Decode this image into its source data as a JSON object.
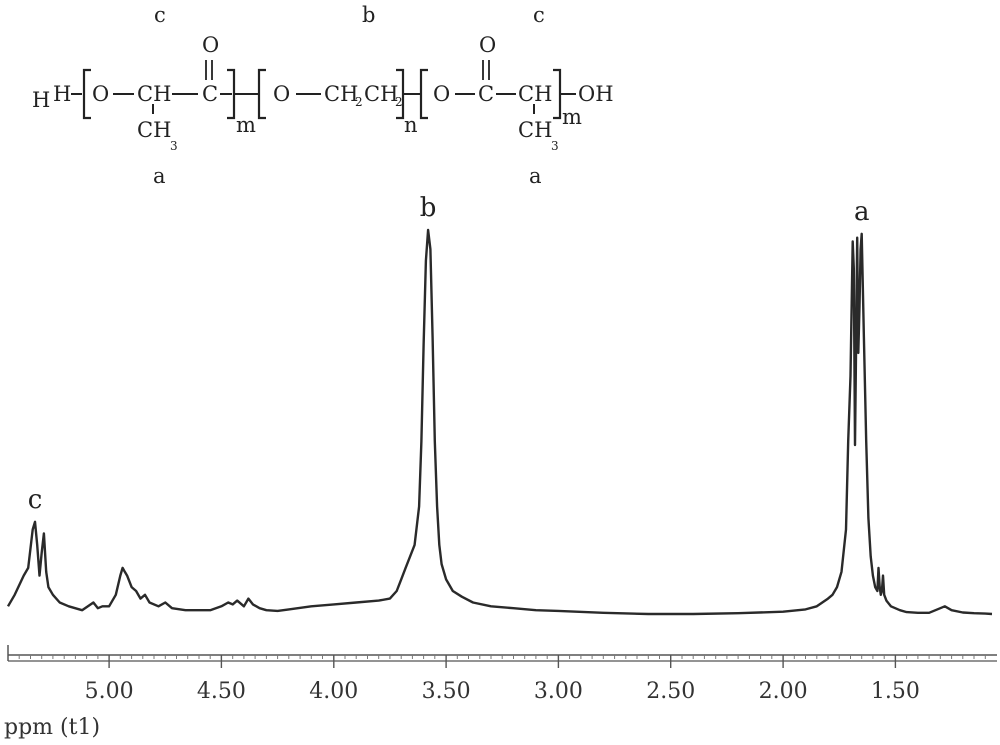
{
  "structure": {
    "labels_top": [
      "c",
      "b",
      "c"
    ],
    "labels_bottom": [
      "a",
      "a"
    ],
    "h_end": "H",
    "h": "H",
    "o1": "O",
    "ch1": "CH",
    "c1": "C",
    "o_carbonyl1": "O",
    "ch3_1": "CH",
    "ch3_1_sub": "3",
    "m1": "m",
    "o2": "O",
    "ch2_a": "CH",
    "ch2_a_sub": "2",
    "ch2_b": "CH",
    "ch2_b_sub": "2",
    "n": "n",
    "o3": "O",
    "c2": "C",
    "o_carbonyl2": "O",
    "ch2": "CH",
    "ch3_2": "CH",
    "ch3_2_sub": "3",
    "m2": "m",
    "oh": "OH"
  },
  "chart_data": {
    "type": "line",
    "xlabel": "ppm (t1)",
    "ylabel": "",
    "x_reversed": true,
    "xlim": [
      5.45,
      1.07
    ],
    "ylim": [
      0,
      1
    ],
    "x_ticks": [
      5.0,
      4.5,
      4.0,
      3.5,
      3.0,
      2.5,
      2.0,
      1.5
    ],
    "x_tick_labels": [
      "5.00",
      "4.50",
      "4.00",
      "3.50",
      "3.00",
      "2.50",
      "2.00",
      "1.50"
    ],
    "peak_labels": [
      {
        "label": "c",
        "x": 5.33
      },
      {
        "label": "b",
        "x": 3.58
      },
      {
        "label": "a",
        "x": 1.65
      }
    ],
    "series": [
      {
        "x": [
          5.45,
          5.42,
          5.38,
          5.36,
          5.34,
          5.33,
          5.32,
          5.31,
          5.3,
          5.29,
          5.28,
          5.27,
          5.25,
          5.22,
          5.18,
          5.12,
          5.07,
          5.05,
          5.03,
          5.0,
          4.97,
          4.95,
          4.94,
          4.93,
          4.92,
          4.9,
          4.88,
          4.86,
          4.84,
          4.82,
          4.78,
          4.75,
          4.72,
          4.66,
          4.6,
          4.55,
          4.5,
          4.47,
          4.45,
          4.43,
          4.4,
          4.38,
          4.36,
          4.33,
          4.3,
          4.25,
          4.2,
          4.1,
          4.0,
          3.9,
          3.8,
          3.75,
          3.72,
          3.7,
          3.68,
          3.66,
          3.64,
          3.62,
          3.61,
          3.6,
          3.59,
          3.58,
          3.57,
          3.56,
          3.55,
          3.54,
          3.53,
          3.52,
          3.5,
          3.47,
          3.43,
          3.38,
          3.3,
          3.2,
          3.1,
          3.0,
          2.8,
          2.6,
          2.4,
          2.2,
          2.0,
          1.9,
          1.85,
          1.8,
          1.78,
          1.76,
          1.74,
          1.72,
          1.71,
          1.7,
          1.69,
          1.685,
          1.68,
          1.675,
          1.67,
          1.665,
          1.66,
          1.655,
          1.65,
          1.64,
          1.63,
          1.62,
          1.61,
          1.6,
          1.59,
          1.58,
          1.575,
          1.57,
          1.565,
          1.56,
          1.555,
          1.55,
          1.54,
          1.52,
          1.48,
          1.45,
          1.4,
          1.35,
          1.3,
          1.28,
          1.25,
          1.2,
          1.15,
          1.1,
          1.07
        ],
        "y": [
          0.02,
          0.05,
          0.1,
          0.12,
          0.22,
          0.24,
          0.18,
          0.1,
          0.16,
          0.21,
          0.11,
          0.07,
          0.05,
          0.03,
          0.02,
          0.01,
          0.03,
          0.015,
          0.02,
          0.02,
          0.05,
          0.1,
          0.12,
          0.11,
          0.1,
          0.07,
          0.06,
          0.04,
          0.05,
          0.03,
          0.02,
          0.03,
          0.015,
          0.01,
          0.01,
          0.01,
          0.02,
          0.03,
          0.025,
          0.035,
          0.02,
          0.04,
          0.025,
          0.015,
          0.01,
          0.008,
          0.012,
          0.02,
          0.025,
          0.03,
          0.035,
          0.04,
          0.06,
          0.09,
          0.12,
          0.15,
          0.18,
          0.28,
          0.45,
          0.7,
          0.92,
          1.0,
          0.95,
          0.72,
          0.45,
          0.28,
          0.18,
          0.13,
          0.09,
          0.06,
          0.045,
          0.03,
          0.02,
          0.015,
          0.01,
          0.008,
          0.003,
          0.0,
          0.0,
          0.002,
          0.006,
          0.012,
          0.02,
          0.04,
          0.05,
          0.07,
          0.11,
          0.22,
          0.45,
          0.62,
          0.97,
          0.9,
          0.44,
          0.7,
          0.98,
          0.68,
          0.8,
          0.95,
          0.99,
          0.72,
          0.45,
          0.25,
          0.15,
          0.1,
          0.07,
          0.06,
          0.12,
          0.07,
          0.05,
          0.06,
          0.1,
          0.05,
          0.035,
          0.02,
          0.01,
          0.005,
          0.003,
          0.003,
          0.015,
          0.02,
          0.01,
          0.004,
          0.002,
          0.001,
          0.0
        ]
      }
    ]
  }
}
